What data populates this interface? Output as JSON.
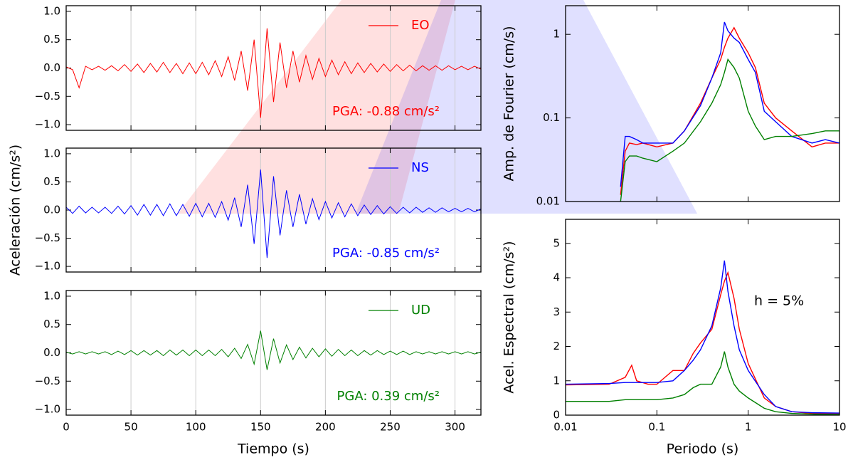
{
  "chart_data": [
    {
      "type": "line",
      "xlim": [
        0,
        320
      ],
      "ylim": [
        -1.1,
        1.1
      ],
      "grid": true,
      "xticks": [
        0,
        50,
        100,
        150,
        200,
        250,
        300
      ],
      "yticks": [
        {
          "value": -1.0,
          "label": "−1.0"
        },
        {
          "value": -0.5,
          "label": "−0.5"
        },
        {
          "value": 0.0,
          "label": "0.0"
        },
        0.5,
        {
          "value": 1.0,
          "label": "1.0"
        }
      ],
      "legend": "upper right",
      "annotation": "PGA: -0.88 cm/s²",
      "x": [
        0,
        5,
        10,
        15,
        20,
        25,
        30,
        35,
        40,
        45,
        50,
        55,
        60,
        65,
        70,
        75,
        80,
        85,
        90,
        95,
        100,
        105,
        110,
        115,
        120,
        125,
        130,
        135,
        140,
        145,
        150,
        155,
        160,
        165,
        170,
        175,
        180,
        185,
        190,
        195,
        200,
        205,
        210,
        215,
        220,
        225,
        230,
        235,
        240,
        245,
        250,
        255,
        260,
        265,
        270,
        275,
        280,
        285,
        290,
        295,
        300,
        305,
        310,
        315,
        320
      ],
      "series": [
        {
          "name": "EO",
          "color": "#ff0000",
          "values": [
            0.02,
            -0.03,
            -0.35,
            0.03,
            -0.03,
            0.03,
            -0.04,
            0.04,
            -0.05,
            0.06,
            -0.06,
            0.07,
            -0.08,
            0.08,
            -0.07,
            0.1,
            -0.08,
            0.08,
            -0.1,
            0.09,
            -0.1,
            0.1,
            -0.12,
            0.13,
            -0.15,
            0.2,
            -0.22,
            0.3,
            -0.4,
            0.5,
            -0.88,
            0.7,
            -0.6,
            0.45,
            -0.35,
            0.3,
            -0.25,
            0.22,
            -0.2,
            0.17,
            -0.15,
            0.14,
            -0.12,
            0.11,
            -0.1,
            0.09,
            -0.08,
            0.08,
            -0.07,
            0.07,
            -0.06,
            0.06,
            -0.05,
            0.05,
            -0.05,
            0.04,
            -0.04,
            0.04,
            -0.04,
            0.04,
            -0.03,
            0.03,
            -0.03,
            0.03,
            -0.02
          ]
        }
      ]
    },
    {
      "type": "line",
      "xlim": [
        0,
        320
      ],
      "ylim": [
        -1.1,
        1.1
      ],
      "grid": true,
      "ylabel": "Aceleración (cm/s²)",
      "xticks": [
        0,
        50,
        100,
        150,
        200,
        250,
        300
      ],
      "yticks": [
        {
          "value": -1.0,
          "label": "−1.0"
        },
        {
          "value": -0.5,
          "label": "−0.5"
        },
        {
          "value": 0.0,
          "label": "0.0"
        },
        0.5,
        {
          "value": 1.0,
          "label": "1.0"
        }
      ],
      "legend": "upper right",
      "annotation": "PGA: -0.85 cm/s²",
      "x": [
        0,
        5,
        10,
        15,
        20,
        25,
        30,
        35,
        40,
        45,
        50,
        55,
        60,
        65,
        70,
        75,
        80,
        85,
        90,
        95,
        100,
        105,
        110,
        115,
        120,
        125,
        130,
        135,
        140,
        145,
        150,
        155,
        160,
        165,
        170,
        175,
        180,
        185,
        190,
        195,
        200,
        205,
        210,
        215,
        220,
        225,
        230,
        235,
        240,
        245,
        250,
        255,
        260,
        265,
        270,
        275,
        280,
        285,
        290,
        295,
        300,
        305,
        310,
        315,
        320
      ],
      "series": [
        {
          "name": "NS",
          "color": "#0000ff",
          "values": [
            0.05,
            -0.06,
            0.07,
            -0.05,
            0.05,
            -0.05,
            0.05,
            -0.06,
            0.07,
            -0.07,
            0.08,
            -0.09,
            0.1,
            -0.09,
            0.1,
            -0.1,
            0.11,
            -0.1,
            0.1,
            -0.11,
            0.12,
            -0.12,
            0.12,
            -0.13,
            0.15,
            -0.18,
            0.22,
            -0.3,
            0.45,
            -0.6,
            0.72,
            -0.85,
            0.6,
            -0.45,
            0.35,
            -0.3,
            0.28,
            -0.25,
            0.2,
            -0.17,
            0.15,
            -0.14,
            0.13,
            -0.12,
            0.11,
            -0.1,
            0.09,
            -0.08,
            0.08,
            -0.07,
            0.06,
            -0.06,
            0.05,
            -0.05,
            0.05,
            -0.04,
            0.04,
            -0.04,
            0.04,
            -0.03,
            0.03,
            -0.03,
            0.03,
            -0.03,
            0.02
          ]
        }
      ]
    },
    {
      "type": "line",
      "xlim": [
        0,
        320
      ],
      "ylim": [
        -1.1,
        1.1
      ],
      "grid": true,
      "xlabel": "Tiempo (s)",
      "xticks": [
        0,
        50,
        100,
        150,
        200,
        250,
        300
      ],
      "yticks": [
        {
          "value": -1.0,
          "label": "−1.0"
        },
        {
          "value": -0.5,
          "label": "−0.5"
        },
        {
          "value": 0.0,
          "label": "0.0"
        },
        0.5,
        {
          "value": 1.0,
          "label": "1.0"
        }
      ],
      "legend": "upper right",
      "annotation": "PGA: 0.39 cm/s²",
      "x": [
        0,
        5,
        10,
        15,
        20,
        25,
        30,
        35,
        40,
        45,
        50,
        55,
        60,
        65,
        70,
        75,
        80,
        85,
        90,
        95,
        100,
        105,
        110,
        115,
        120,
        125,
        130,
        135,
        140,
        145,
        150,
        155,
        160,
        165,
        170,
        175,
        180,
        185,
        190,
        195,
        200,
        205,
        210,
        215,
        220,
        225,
        230,
        235,
        240,
        245,
        250,
        255,
        260,
        265,
        270,
        275,
        280,
        285,
        290,
        295,
        300,
        305,
        310,
        315,
        320
      ],
      "series": [
        {
          "name": "UD",
          "color": "#008000",
          "values": [
            0.01,
            -0.02,
            0.02,
            -0.02,
            0.02,
            -0.02,
            0.02,
            -0.03,
            0.03,
            -0.03,
            0.04,
            -0.04,
            0.04,
            -0.04,
            0.04,
            -0.05,
            0.05,
            -0.04,
            0.05,
            -0.05,
            0.05,
            -0.05,
            0.05,
            -0.05,
            0.06,
            -0.07,
            0.08,
            -0.1,
            0.15,
            -0.2,
            0.39,
            -0.3,
            0.25,
            -0.18,
            0.14,
            -0.12,
            0.1,
            -0.09,
            0.08,
            -0.07,
            0.07,
            -0.06,
            0.06,
            -0.05,
            0.05,
            -0.05,
            0.04,
            -0.04,
            0.04,
            -0.03,
            0.03,
            -0.03,
            0.03,
            -0.03,
            0.02,
            -0.02,
            0.02,
            -0.02,
            0.02,
            -0.02,
            0.02,
            -0.02,
            0.02,
            -0.02,
            0.01
          ]
        }
      ]
    },
    {
      "type": "line",
      "xscale": "log",
      "yscale": "log",
      "xlim": [
        0.01,
        10
      ],
      "ylim": [
        0.01,
        2.2
      ],
      "ylabel": "Amp. de Fourier (cm/s)",
      "xticks": [
        0.01,
        0.1,
        1,
        10
      ],
      "yticks": [
        0.01,
        0.1,
        1
      ],
      "x": [
        0.04,
        0.045,
        0.05,
        0.06,
        0.07,
        0.1,
        0.15,
        0.2,
        0.3,
        0.4,
        0.5,
        0.55,
        0.6,
        0.7,
        0.8,
        1.0,
        1.2,
        1.5,
        2,
        3,
        5,
        7,
        10
      ],
      "series": [
        {
          "name": "EO",
          "color": "#ff0000",
          "values": [
            0.012,
            0.04,
            0.05,
            0.048,
            0.05,
            0.045,
            0.05,
            0.07,
            0.15,
            0.3,
            0.5,
            0.7,
            0.9,
            1.2,
            0.9,
            0.6,
            0.4,
            0.15,
            0.1,
            0.07,
            0.045,
            0.05,
            0.05
          ]
        },
        {
          "name": "NS",
          "color": "#0000ff",
          "values": [
            0.015,
            0.06,
            0.06,
            0.055,
            0.05,
            0.05,
            0.05,
            0.07,
            0.14,
            0.3,
            0.6,
            1.4,
            1.1,
            0.9,
            0.8,
            0.5,
            0.35,
            0.12,
            0.09,
            0.06,
            0.05,
            0.055,
            0.05
          ]
        },
        {
          "name": "UD",
          "color": "#008000",
          "values": [
            0.01,
            0.03,
            0.035,
            0.035,
            0.033,
            0.03,
            0.04,
            0.05,
            0.09,
            0.15,
            0.25,
            0.35,
            0.5,
            0.4,
            0.3,
            0.12,
            0.08,
            0.055,
            0.06,
            0.06,
            0.065,
            0.07,
            0.07
          ]
        }
      ]
    },
    {
      "type": "line",
      "xscale": "log",
      "xlim": [
        0.01,
        10
      ],
      "ylim": [
        0,
        5.7
      ],
      "ylabel": "Acel. Espectral (cm/s²)",
      "xlabel": "Periodo (s)",
      "annotation": "h = 5%",
      "xticks": [
        0.01,
        0.1,
        1,
        10
      ],
      "yticks": [
        0,
        1,
        2,
        3,
        4,
        5
      ],
      "x": [
        0.01,
        0.03,
        0.045,
        0.053,
        0.06,
        0.08,
        0.1,
        0.15,
        0.2,
        0.25,
        0.3,
        0.4,
        0.5,
        0.55,
        0.6,
        0.7,
        0.8,
        1,
        1.5,
        2,
        3,
        5,
        10
      ],
      "series": [
        {
          "name": "EO",
          "color": "#ff0000",
          "values": [
            0.88,
            0.9,
            1.1,
            1.45,
            1.0,
            0.9,
            0.9,
            1.3,
            1.3,
            1.8,
            2.1,
            2.5,
            3.5,
            3.9,
            4.15,
            3.4,
            2.5,
            1.5,
            0.5,
            0.25,
            0.1,
            0.05,
            0.05
          ]
        },
        {
          "name": "NS",
          "color": "#0000ff",
          "values": [
            0.9,
            0.92,
            0.95,
            0.95,
            0.95,
            0.95,
            0.95,
            1.0,
            1.3,
            1.6,
            1.9,
            2.6,
            3.7,
            4.5,
            3.6,
            2.6,
            1.9,
            1.3,
            0.6,
            0.25,
            0.1,
            0.07,
            0.06
          ]
        },
        {
          "name": "UD",
          "color": "#008000",
          "values": [
            0.4,
            0.4,
            0.45,
            0.45,
            0.45,
            0.45,
            0.45,
            0.5,
            0.6,
            0.8,
            0.9,
            0.9,
            1.4,
            1.85,
            1.4,
            0.9,
            0.7,
            0.5,
            0.2,
            0.1,
            0.05,
            0.03,
            0.02
          ]
        }
      ]
    }
  ]
}
